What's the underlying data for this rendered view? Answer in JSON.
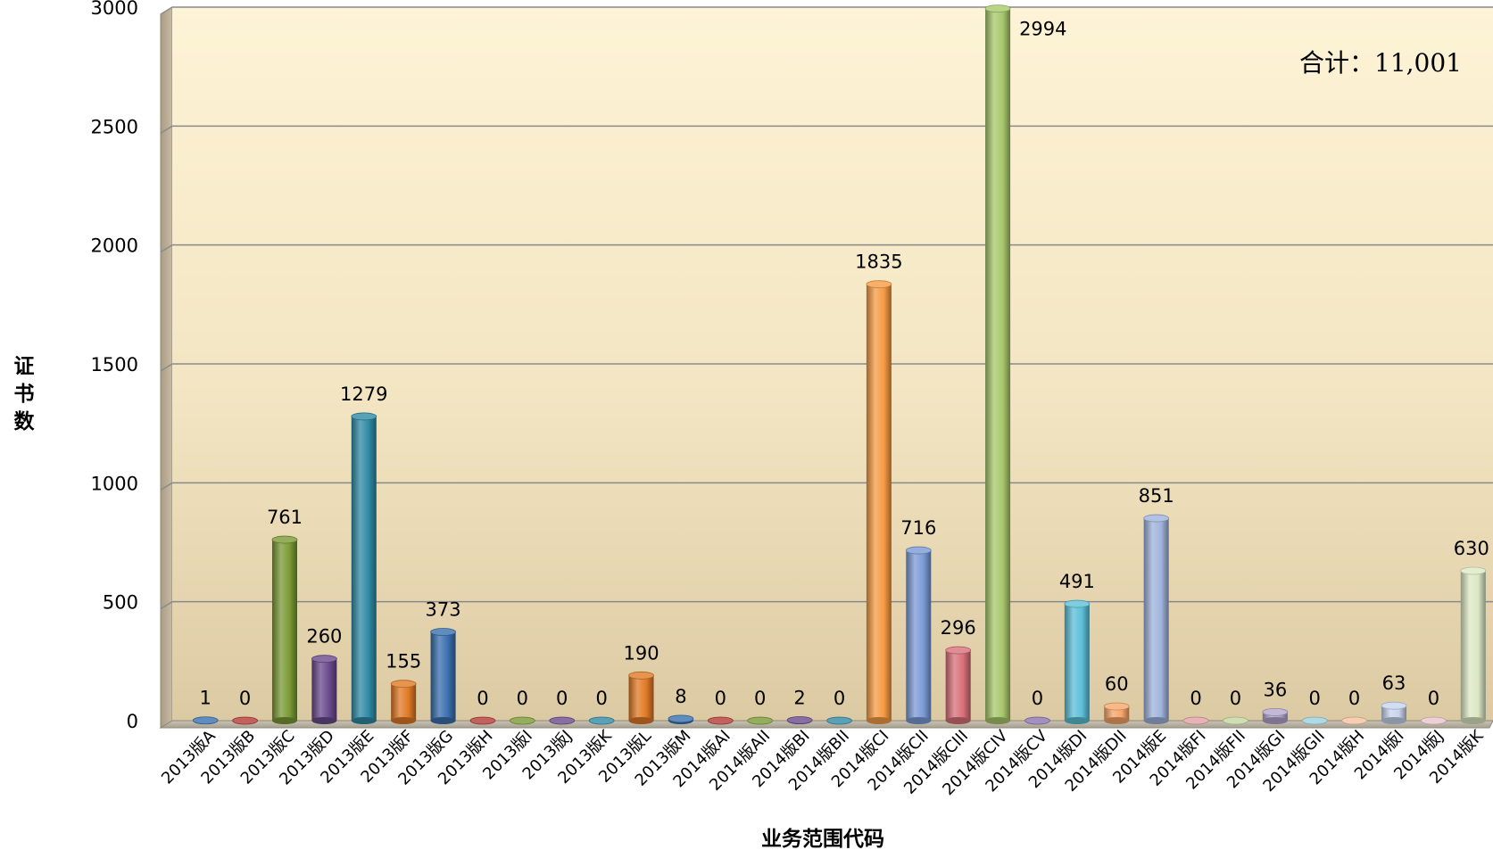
{
  "chart_data": {
    "type": "bar",
    "title": "",
    "xlabel": "业务范围代码",
    "ylabel": "证书数",
    "ylim": [
      0,
      3000
    ],
    "yticks": [
      0,
      500,
      1000,
      1500,
      2000,
      2500,
      3000
    ],
    "grid": true,
    "annotation": "合计：11,001",
    "categories": [
      "2013版A",
      "2013版B",
      "2013版C",
      "2013版D",
      "2013版E",
      "2013版F",
      "2013版G",
      "2013版H",
      "2013版I",
      "2013版J",
      "2013版K",
      "2013版L",
      "2013版M",
      "2014版AI",
      "2014版AII",
      "2014版BI",
      "2014版BII",
      "2014版CI",
      "2014版CII",
      "2014版CIII",
      "2014版CIV",
      "2014版CV",
      "2014版DI",
      "2014版DII",
      "2014版E",
      "2014版FI",
      "2014版FII",
      "2014版GI",
      "2014版GII",
      "2014版H",
      "2014版I",
      "2014版J",
      "2014版K"
    ],
    "values": [
      1,
      0,
      761,
      260,
      1279,
      155,
      373,
      0,
      0,
      0,
      0,
      190,
      8,
      0,
      0,
      2,
      0,
      1835,
      716,
      296,
      2994,
      0,
      491,
      60,
      851,
      0,
      0,
      36,
      0,
      0,
      63,
      0,
      630
    ],
    "colors": [
      "#3a6fae",
      "#b33a36",
      "#7a9a36",
      "#6a4a8c",
      "#2f8aa5",
      "#e07a26",
      "#3a6fae",
      "#b33a36",
      "#7a9a36",
      "#6a4a8c",
      "#2f8aa5",
      "#e07a26",
      "#3a6fae",
      "#b33a36",
      "#7a9a36",
      "#6a4a8c",
      "#2f8aa5",
      "#f59b45",
      "#7b9ad6",
      "#d9707a",
      "#a8c86c",
      "#8a74b0",
      "#5cbfd8",
      "#f7a66a",
      "#9fb3dc",
      "#e0a0a4",
      "#c4d6a0",
      "#b4a6cc",
      "#9cd0e0",
      "#f4c2a0",
      "#c8d4ee",
      "#e8c4cc",
      "#dce8c4"
    ]
  }
}
